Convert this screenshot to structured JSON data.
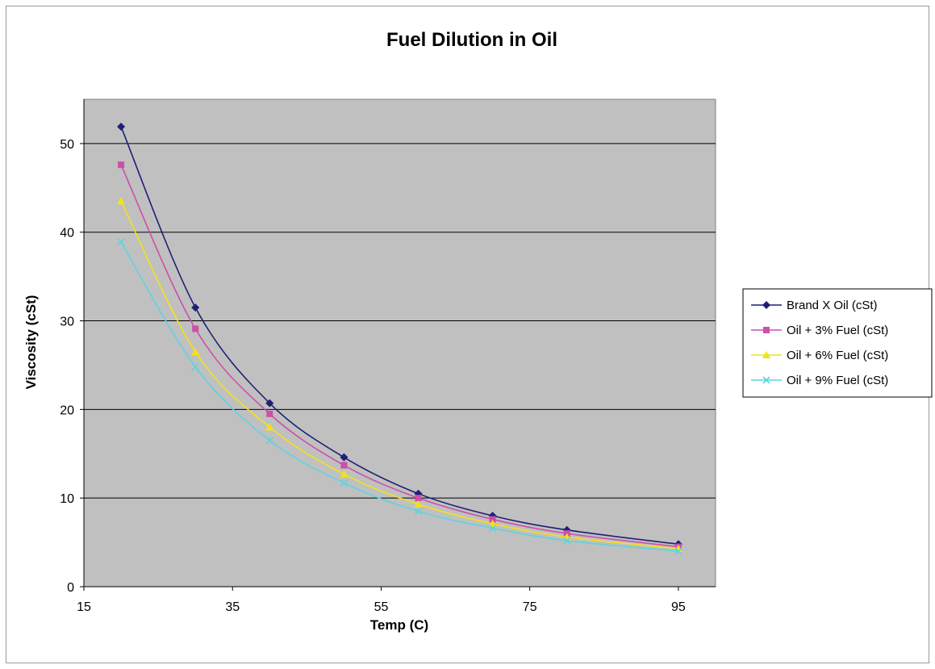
{
  "chart_data": {
    "type": "line",
    "title": "Fuel Dilution in Oil",
    "xlabel": "Temp (C)",
    "ylabel": "Viscosity (cSt)",
    "xlim": [
      15,
      100
    ],
    "ylim": [
      0,
      55
    ],
    "xticks": [
      15,
      35,
      55,
      75,
      95
    ],
    "yticks": [
      0,
      10,
      20,
      30,
      40,
      50
    ],
    "grid": "horizontal",
    "plot_background": "#c0c0c0",
    "legend_position": "right",
    "x": [
      20,
      30,
      40,
      50,
      60,
      70,
      80,
      95
    ],
    "series": [
      {
        "name": "Brand X Oil (cSt)",
        "color": "#1f1f78",
        "marker": "diamond",
        "values": [
          51.9,
          31.5,
          20.7,
          14.6,
          10.5,
          8.0,
          6.4,
          4.8
        ]
      },
      {
        "name": "Oil + 3% Fuel (cSt)",
        "color": "#cc4faa",
        "marker": "square",
        "values": [
          47.6,
          29.1,
          19.5,
          13.7,
          10.0,
          7.6,
          6.0,
          4.5
        ]
      },
      {
        "name": "Oil + 6% Fuel (cSt)",
        "color": "#f2e21a",
        "marker": "triangle",
        "values": [
          43.5,
          26.5,
          18.0,
          12.7,
          9.3,
          7.1,
          5.6,
          4.3
        ]
      },
      {
        "name": "Oil + 9% Fuel (cSt)",
        "color": "#5fd2e2",
        "marker": "x",
        "values": [
          38.9,
          24.8,
          16.5,
          11.7,
          8.5,
          6.6,
          5.2,
          4.0
        ]
      }
    ]
  }
}
